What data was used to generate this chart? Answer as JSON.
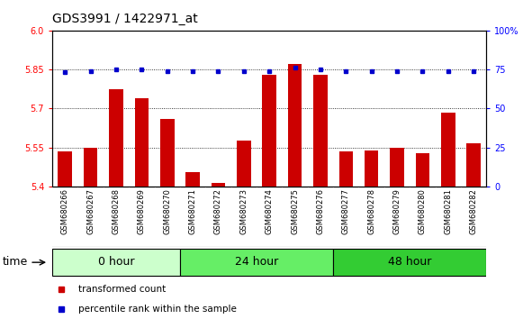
{
  "title": "GDS3991 / 1422971_at",
  "samples": [
    "GSM680266",
    "GSM680267",
    "GSM680268",
    "GSM680269",
    "GSM680270",
    "GSM680271",
    "GSM680272",
    "GSM680273",
    "GSM680274",
    "GSM680275",
    "GSM680276",
    "GSM680277",
    "GSM680278",
    "GSM680279",
    "GSM680280",
    "GSM680281",
    "GSM680282"
  ],
  "bar_values": [
    5.535,
    5.548,
    5.775,
    5.74,
    5.66,
    5.455,
    5.415,
    5.575,
    5.83,
    5.87,
    5.83,
    5.535,
    5.538,
    5.548,
    5.528,
    5.685,
    5.565
  ],
  "blue_values": [
    73,
    74,
    75,
    75,
    74,
    74,
    74,
    74,
    74,
    76,
    75,
    74,
    74,
    74,
    74,
    74,
    74
  ],
  "bar_color": "#cc0000",
  "blue_color": "#0000cc",
  "groups": [
    {
      "label": "0 hour",
      "start": 0,
      "end": 5,
      "color": "#ccffcc"
    },
    {
      "label": "24 hour",
      "start": 5,
      "end": 11,
      "color": "#66ee66"
    },
    {
      "label": "48 hour",
      "start": 11,
      "end": 17,
      "color": "#33cc33"
    }
  ],
  "ylim_left": [
    5.4,
    6.0
  ],
  "ylim_right": [
    0,
    100
  ],
  "yticks_left": [
    5.4,
    5.55,
    5.7,
    5.85,
    6.0
  ],
  "yticks_right": [
    0,
    25,
    50,
    75,
    100
  ],
  "ytick_labels_right": [
    "0",
    "25",
    "50",
    "75",
    "100%"
  ],
  "bg_color": "#ffffff",
  "plot_bg_color": "#ffffff",
  "grid_color": "#000000",
  "legend_items": [
    {
      "label": "transformed count",
      "color": "#cc0000"
    },
    {
      "label": "percentile rank within the sample",
      "color": "#0000cc"
    }
  ],
  "title_fontsize": 10,
  "tick_fontsize": 7,
  "label_fontsize": 9,
  "group_label_fontsize": 9,
  "xtick_fontsize": 6
}
